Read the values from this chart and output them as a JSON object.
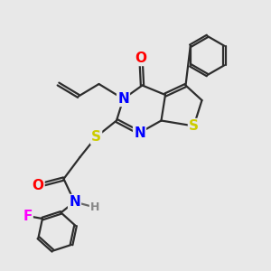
{
  "background_color": "#e8e8e8",
  "bond_color": "#2d2d2d",
  "atom_colors": {
    "N": "#0000ff",
    "O": "#ff0000",
    "S": "#cccc00",
    "F": "#ff00ff",
    "H": "#888888",
    "C": "#2d2d2d"
  },
  "font_size_atoms": 11,
  "font_size_small": 9,
  "figsize": [
    3.0,
    3.0
  ],
  "dpi": 100
}
